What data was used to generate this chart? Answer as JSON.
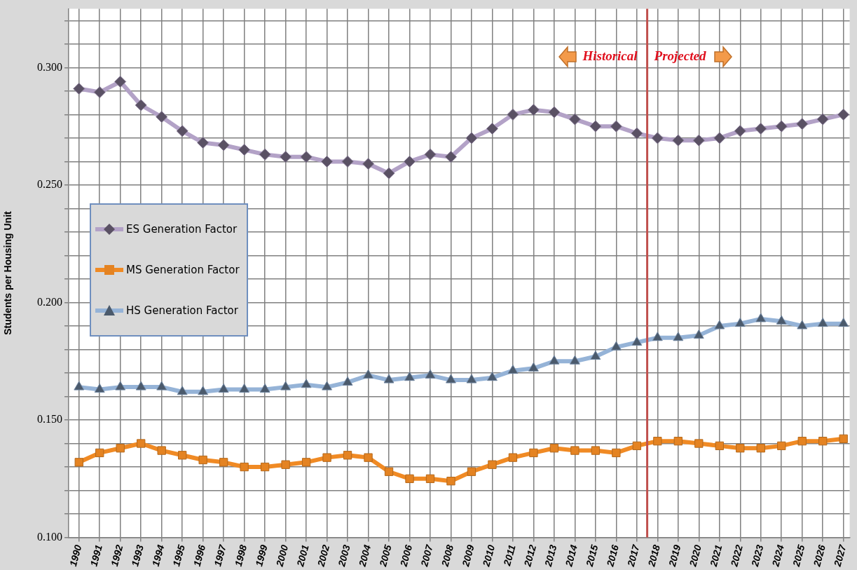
{
  "chart_data": {
    "type": "line",
    "ylabel": "Students per Housing Unit",
    "x": [
      1990,
      1991,
      1992,
      1993,
      1994,
      1995,
      1996,
      1997,
      1998,
      1999,
      2000,
      2001,
      2002,
      2003,
      2004,
      2005,
      2006,
      2007,
      2008,
      2009,
      2010,
      2011,
      2012,
      2013,
      2014,
      2015,
      2016,
      2017,
      2018,
      2019,
      2020,
      2021,
      2022,
      2023,
      2024,
      2025,
      2026,
      2027
    ],
    "xlim": [
      1989.5,
      2027.3
    ],
    "xticks": [
      1990,
      1991,
      1992,
      1993,
      1994,
      1995,
      1996,
      1997,
      1998,
      1999,
      2000,
      2001,
      2002,
      2003,
      2004,
      2005,
      2006,
      2007,
      2008,
      2009,
      2010,
      2011,
      2012,
      2013,
      2014,
      2015,
      2016,
      2017,
      2018,
      2019,
      2020,
      2021,
      2022,
      2023,
      2024,
      2025,
      2026,
      2027
    ],
    "ylim": [
      0.1,
      0.325
    ],
    "yticks": [
      {
        "value": 0.1,
        "label": "0.100"
      },
      {
        "value": 0.11,
        "label": null
      },
      {
        "value": 0.12,
        "label": null
      },
      {
        "value": 0.13,
        "label": null
      },
      {
        "value": 0.14,
        "label": null
      },
      {
        "value": 0.15,
        "label": "0.150"
      },
      {
        "value": 0.16,
        "label": null
      },
      {
        "value": 0.17,
        "label": null
      },
      {
        "value": 0.18,
        "label": null
      },
      {
        "value": 0.19,
        "label": null
      },
      {
        "value": 0.2,
        "label": "0.200"
      },
      {
        "value": 0.21,
        "label": null
      },
      {
        "value": 0.22,
        "label": null
      },
      {
        "value": 0.23,
        "label": null
      },
      {
        "value": 0.24,
        "label": null
      },
      {
        "value": 0.25,
        "label": "0.250"
      },
      {
        "value": 0.26,
        "label": null
      },
      {
        "value": 0.27,
        "label": null
      },
      {
        "value": 0.28,
        "label": null
      },
      {
        "value": 0.29,
        "label": null
      },
      {
        "value": 0.3,
        "label": "0.300"
      },
      {
        "value": 0.31,
        "label": null
      },
      {
        "value": 0.32,
        "label": null
      }
    ],
    "grid": true,
    "legend": "left",
    "line_style": "solid",
    "series": [
      {
        "name": "ES Generation Factor",
        "color": "#b3a2c7",
        "marker": "diamond",
        "values": [
          0.291,
          0.2895,
          0.294,
          0.284,
          0.279,
          0.273,
          0.268,
          0.267,
          0.265,
          0.263,
          0.262,
          0.262,
          0.26,
          0.26,
          0.259,
          0.255,
          0.26,
          0.263,
          0.262,
          0.27,
          0.274,
          0.28,
          0.282,
          0.281,
          0.278,
          0.275,
          0.275,
          0.272,
          0.27,
          0.269,
          0.269,
          0.27,
          0.273,
          0.274,
          0.275,
          0.276,
          0.278,
          0.28
        ]
      },
      {
        "name": "MS Generation Factor",
        "color": "#f08a24",
        "marker": "square",
        "values": [
          0.132,
          0.136,
          0.138,
          0.14,
          0.137,
          0.135,
          0.133,
          0.132,
          0.13,
          0.13,
          0.131,
          0.132,
          0.134,
          0.135,
          0.134,
          0.128,
          0.125,
          0.125,
          0.124,
          0.128,
          0.131,
          0.134,
          0.136,
          0.138,
          0.137,
          0.137,
          0.136,
          0.139,
          0.141,
          0.141,
          0.14,
          0.139,
          0.138,
          0.138,
          0.139,
          0.141,
          0.141,
          0.142
        ]
      },
      {
        "name": "HS Generation Factor",
        "color": "#95b3d7",
        "marker": "triangle",
        "values": [
          0.164,
          0.163,
          0.164,
          0.164,
          0.164,
          0.162,
          0.162,
          0.163,
          0.163,
          0.163,
          0.164,
          0.165,
          0.164,
          0.166,
          0.169,
          0.167,
          0.168,
          0.169,
          0.167,
          0.167,
          0.168,
          0.171,
          0.172,
          0.175,
          0.175,
          0.177,
          0.181,
          0.183,
          0.185,
          0.185,
          0.186,
          0.19,
          0.191,
          0.193,
          0.192,
          0.19,
          0.191,
          0.191
        ]
      }
    ],
    "ref_lines": [
      {
        "axis": "x",
        "value": 2017.5,
        "color": "#c0504d"
      }
    ],
    "annotations": [
      "Historical",
      "Projected"
    ]
  }
}
